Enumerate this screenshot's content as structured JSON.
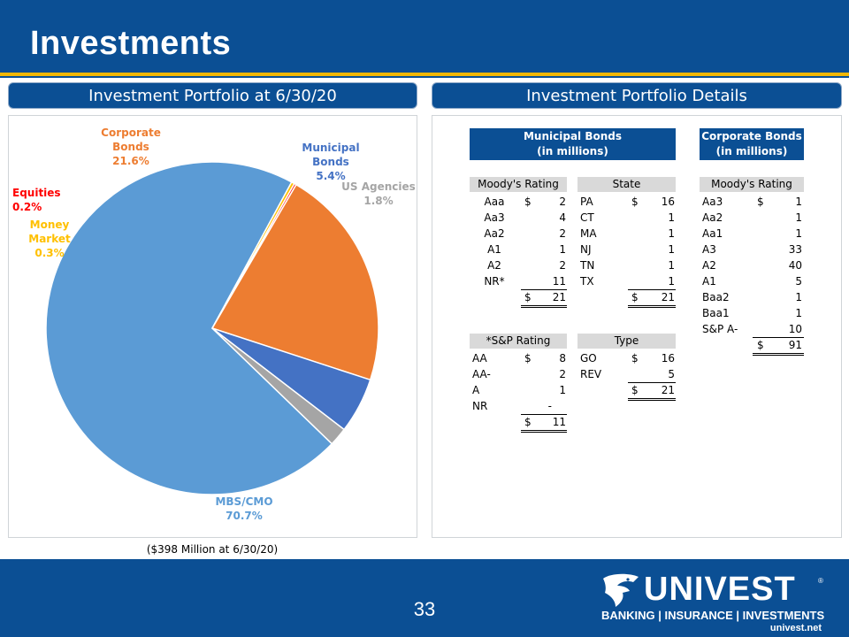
{
  "page": {
    "title": "Investments",
    "page_number": "33",
    "footnote": "($398 Million at 6/30/20)"
  },
  "sections": {
    "left_title": "Investment Portfolio at 6/30/20",
    "right_title": "Investment Portfolio Details"
  },
  "colors": {
    "brand_blue": "#0b4f94",
    "accent_gold": "#f2b705",
    "table_grey": "#d9d9d9"
  },
  "chart_data": {
    "type": "pie",
    "slices": [
      {
        "label": "MBS/CMO",
        "value": 70.7,
        "value_label": "70.7%",
        "color": "#5b9bd5"
      },
      {
        "label": "Money Market",
        "value": 0.3,
        "value_label": "0.3%",
        "color": "#ffc000"
      },
      {
        "label": "Equities",
        "value": 0.2,
        "value_label": "0.2%",
        "color": "#ff0000"
      },
      {
        "label": "Corporate Bonds",
        "value": 21.6,
        "value_label": "21.6%",
        "color": "#ed7d31"
      },
      {
        "label": "Municipal Bonds",
        "value": 5.4,
        "value_label": "5.4%",
        "color": "#4472c4"
      },
      {
        "label": "US Agencies",
        "value": 1.8,
        "value_label": "1.8%",
        "color": "#a5a5a5"
      }
    ]
  },
  "pie_labels": {
    "mbs": {
      "name": "MBS/CMO",
      "pct": "70.7%"
    },
    "money_market": {
      "name": "Money Market",
      "pct": "0.3%"
    },
    "equities": {
      "name": "Equities",
      "pct": "0.2%"
    },
    "corporate": {
      "name1": "Corporate",
      "name2": "Bonds",
      "pct": "21.6%"
    },
    "municipal": {
      "name1": "Municipal",
      "name2": "Bonds",
      "pct": "5.4%"
    },
    "agencies": {
      "name": "US Agencies",
      "pct": "1.8%"
    }
  },
  "municipal": {
    "header1": "Municipal Bonds",
    "header2": "(in millions)",
    "moodys": {
      "heading": "Moody's Rating",
      "rows": [
        {
          "rating": "Aaa",
          "cur": "$",
          "val": "2"
        },
        {
          "rating": "Aa3",
          "cur": "",
          "val": "4"
        },
        {
          "rating": "Aa2",
          "cur": "",
          "val": "2"
        },
        {
          "rating": "A1",
          "cur": "",
          "val": "1"
        },
        {
          "rating": "A2",
          "cur": "",
          "val": "2"
        },
        {
          "rating": "NR*",
          "cur": "",
          "val": "11"
        }
      ],
      "total_cur": "$",
      "total": "21"
    },
    "state": {
      "heading": "State",
      "rows": [
        {
          "state": "PA",
          "cur": "$",
          "val": "16"
        },
        {
          "state": "CT",
          "cur": "",
          "val": "1"
        },
        {
          "state": "MA",
          "cur": "",
          "val": "1"
        },
        {
          "state": "NJ",
          "cur": "",
          "val": "1"
        },
        {
          "state": "TN",
          "cur": "",
          "val": "1"
        },
        {
          "state": "TX",
          "cur": "",
          "val": "1"
        }
      ],
      "total_cur": "$",
      "total": "21"
    },
    "sp": {
      "heading": "*S&P Rating",
      "rows": [
        {
          "rating": "AA",
          "cur": "$",
          "val": "8"
        },
        {
          "rating": "AA-",
          "cur": "",
          "val": "2"
        },
        {
          "rating": "A",
          "cur": "",
          "val": "1"
        },
        {
          "rating": "NR",
          "cur": "",
          "val": "-"
        }
      ],
      "total_cur": "$",
      "total": "11"
    },
    "type": {
      "heading": "Type",
      "rows": [
        {
          "type": "GO",
          "cur": "$",
          "val": "16"
        },
        {
          "type": "REV",
          "cur": "",
          "val": "5"
        }
      ],
      "total_cur": "$",
      "total": "21"
    }
  },
  "corporate": {
    "header1": "Corporate Bonds",
    "header2": "(in millions)",
    "moodys": {
      "heading": "Moody's Rating",
      "rows": [
        {
          "rating": "Aa3",
          "cur": "$",
          "val": "1"
        },
        {
          "rating": "Aa2",
          "cur": "",
          "val": "1"
        },
        {
          "rating": "Aa1",
          "cur": "",
          "val": "1"
        },
        {
          "rating": "A3",
          "cur": "",
          "val": "33"
        },
        {
          "rating": "A2",
          "cur": "",
          "val": "40"
        },
        {
          "rating": "A1",
          "cur": "",
          "val": "5"
        },
        {
          "rating": "Baa2",
          "cur": "",
          "val": "1"
        },
        {
          "rating": "Baa1",
          "cur": "",
          "val": "1"
        },
        {
          "rating": "S&P A-",
          "cur": "",
          "val": "10"
        }
      ],
      "total_cur": "$",
      "total": "91"
    }
  },
  "logo": {
    "word": "UNIVEST",
    "reg": "®",
    "tagline": "BANKING | INSURANCE | INVESTMENTS",
    "url": "univest.net"
  }
}
